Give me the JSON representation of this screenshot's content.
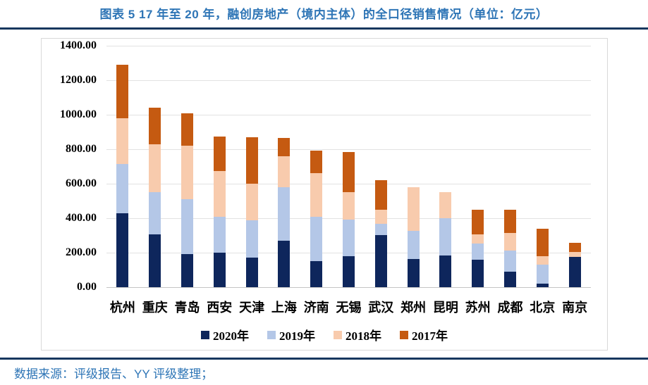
{
  "header": {
    "title": "图表 5 17 年至 20 年，融创房地产（境内主体）的全口径销售情况（单位：亿元）"
  },
  "footer": {
    "source": "数据来源：评级报告、YY 评级整理；"
  },
  "colors": {
    "accent_blue": "#2E75B6",
    "rule_navy": "#17375E",
    "gridline": "#E2E2E2",
    "axis_line": "#C4C4C4"
  },
  "chart_data": {
    "type": "bar",
    "subtype": "stacked-vertical",
    "title": "",
    "xlabel": "",
    "ylabel": "",
    "unit": "亿元",
    "ylim": [
      0,
      1400
    ],
    "ytick_step": 200,
    "yticks": [
      "0.00",
      "200.00",
      "400.00",
      "600.00",
      "800.00",
      "1000.00",
      "1200.00",
      "1400.00"
    ],
    "grid": "horizontal",
    "legend_position": "bottom",
    "categories": [
      "杭州",
      "重庆",
      "青岛",
      "西安",
      "天津",
      "上海",
      "济南",
      "无锡",
      "武汉",
      "郑州",
      "昆明",
      "苏州",
      "成都",
      "北京",
      "南京"
    ],
    "series": [
      {
        "name": "2020年",
        "color": "#0E265C",
        "values": [
          430,
          305,
          192,
          200,
          172,
          270,
          152,
          180,
          303,
          162,
          183,
          161,
          88,
          21,
          175
        ]
      },
      {
        "name": "2019年",
        "color": "#B4C7E7",
        "values": [
          285,
          245,
          318,
          207,
          215,
          308,
          258,
          210,
          66,
          165,
          217,
          92,
          124,
          108,
          0
        ]
      },
      {
        "name": "2018年",
        "color": "#F8CBAD",
        "values": [
          265,
          278,
          312,
          268,
          213,
          180,
          250,
          160,
          78,
          253,
          151,
          53,
          101,
          50,
          29
        ]
      },
      {
        "name": "2017年",
        "color": "#C55A11",
        "values": [
          310,
          212,
          188,
          200,
          268,
          107,
          130,
          235,
          172,
          0,
          0,
          145,
          134,
          158,
          54
        ]
      }
    ],
    "totals": [
      1290,
      1040,
      1010,
      875,
      868,
      865,
      790,
      785,
      619,
      580,
      551,
      451,
      447,
      337,
      258
    ]
  }
}
